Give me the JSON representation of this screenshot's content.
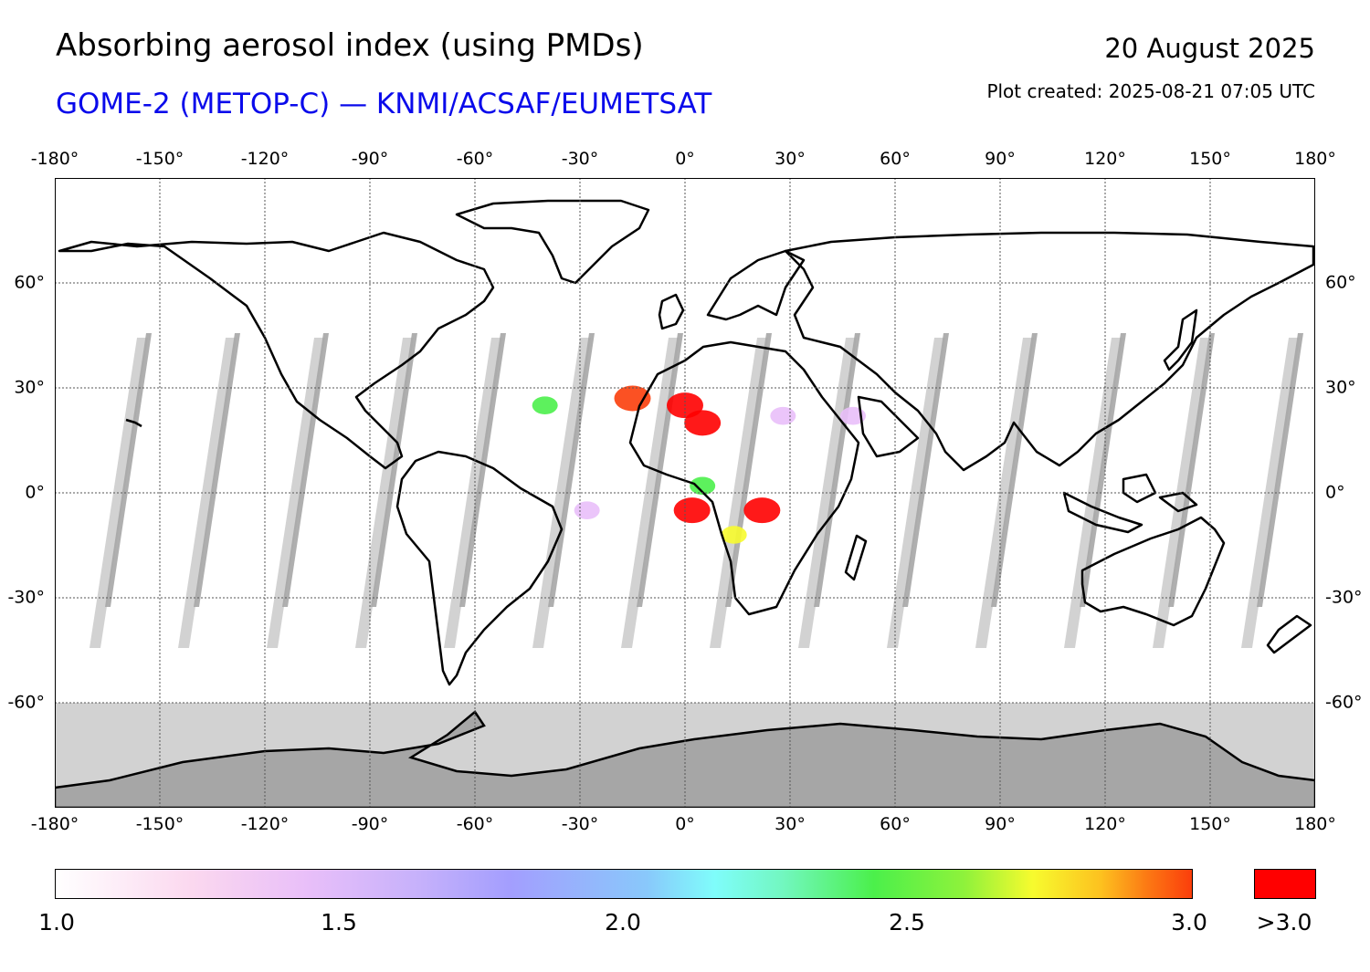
{
  "header": {
    "title": "Absorbing aerosol index (using PMDs)",
    "subtitle": "GOME-2 (METOP-C) — KNMI/ACSAF/EUMETSAT",
    "date": "20 August 2025",
    "plot_created": "Plot created: 2025-08-21 07:05 UTC"
  },
  "colors": {
    "subtitle": "#0a0aeb",
    "land_outline": "#000000",
    "no_data_dark": "#a6a6a6",
    "no_data_light": "#d2d2d2",
    "over_max": "#ff0000"
  },
  "axes": {
    "lon_ticks": [
      "-180°",
      "-150°",
      "-120°",
      "-90°",
      "-60°",
      "-30°",
      "0°",
      "30°",
      "60°",
      "90°",
      "120°",
      "150°",
      "180°"
    ],
    "lon_values": [
      -180,
      -150,
      -120,
      -90,
      -60,
      -30,
      0,
      30,
      60,
      90,
      120,
      150,
      180
    ],
    "lat_ticks": [
      "60°",
      "30°",
      "0°",
      "-30°",
      "-60°"
    ],
    "lat_values": [
      60,
      30,
      0,
      -30,
      -60
    ],
    "lon_range": [
      -180,
      180
    ],
    "lat_range": [
      -90,
      90
    ],
    "grid": true
  },
  "colorbar": {
    "ticks": [
      "1.0",
      "1.5",
      "2.0",
      "2.5",
      "3.0"
    ],
    "tick_values": [
      1.0,
      1.5,
      2.0,
      2.5,
      3.0
    ],
    "range": [
      1.0,
      3.0
    ],
    "over_label": ">3.0"
  },
  "aerosol_plumes": [
    {
      "lon": 0,
      "lat": 25,
      "level": 3.2
    },
    {
      "lon": 5,
      "lat": 20,
      "level": 3.1
    },
    {
      "lon": -15,
      "lat": 27,
      "level": 3.0
    },
    {
      "lon": 2,
      "lat": -5,
      "level": 3.2
    },
    {
      "lon": 22,
      "lat": -5,
      "level": 3.1
    },
    {
      "lon": 14,
      "lat": -12,
      "level": 2.6
    },
    {
      "lon": 5,
      "lat": 2,
      "level": 2.3
    },
    {
      "lon": -40,
      "lat": 25,
      "level": 2.4
    },
    {
      "lon": 48,
      "lat": 22,
      "level": 1.6
    },
    {
      "lon": 28,
      "lat": 22,
      "level": 1.5
    },
    {
      "lon": -28,
      "lat": -5,
      "level": 1.5
    }
  ]
}
